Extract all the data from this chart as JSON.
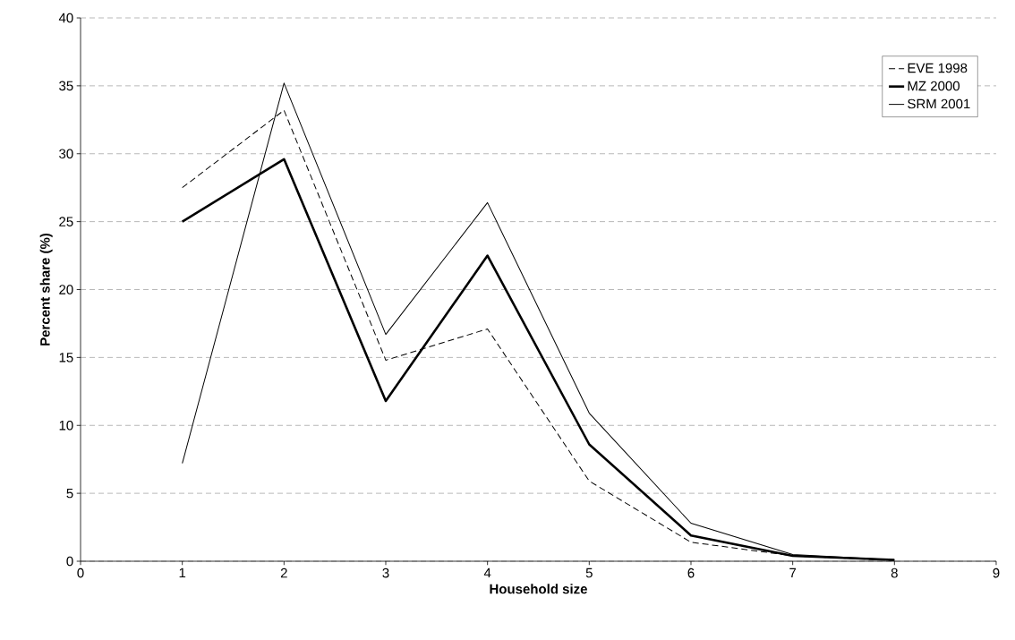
{
  "chart_data": {
    "type": "line",
    "xlabel": "Household size",
    "ylabel": "Percent share (%)",
    "x": [
      1,
      2,
      3,
      4,
      5,
      6,
      7,
      8
    ],
    "series": [
      {
        "name": "EVE 1998",
        "color": "#000000",
        "line_style": "dashed",
        "values": [
          27.5,
          33.2,
          14.8,
          17.1,
          5.9,
          1.4,
          0.4,
          0.05
        ]
      },
      {
        "name": "MZ 2000",
        "color": "#000000",
        "line_style": "solid",
        "values": [
          25.0,
          29.6,
          11.8,
          22.5,
          8.6,
          1.9,
          0.4,
          0.1
        ]
      },
      {
        "name": "SRM 2001",
        "color": "#000000",
        "line_style": "solid",
        "values": [
          7.2,
          35.2,
          16.7,
          26.4,
          10.9,
          2.8,
          0.5,
          0.1
        ]
      }
    ],
    "xlim": [
      0,
      9
    ],
    "xticks": [
      0,
      1,
      2,
      3,
      4,
      5,
      6,
      7,
      8,
      9
    ],
    "ylim": [
      0,
      40
    ],
    "yticks": [
      0,
      5,
      10,
      15,
      20,
      25,
      30,
      35,
      40
    ],
    "grid": "y",
    "legend": "top right",
    "marker": "none"
  }
}
